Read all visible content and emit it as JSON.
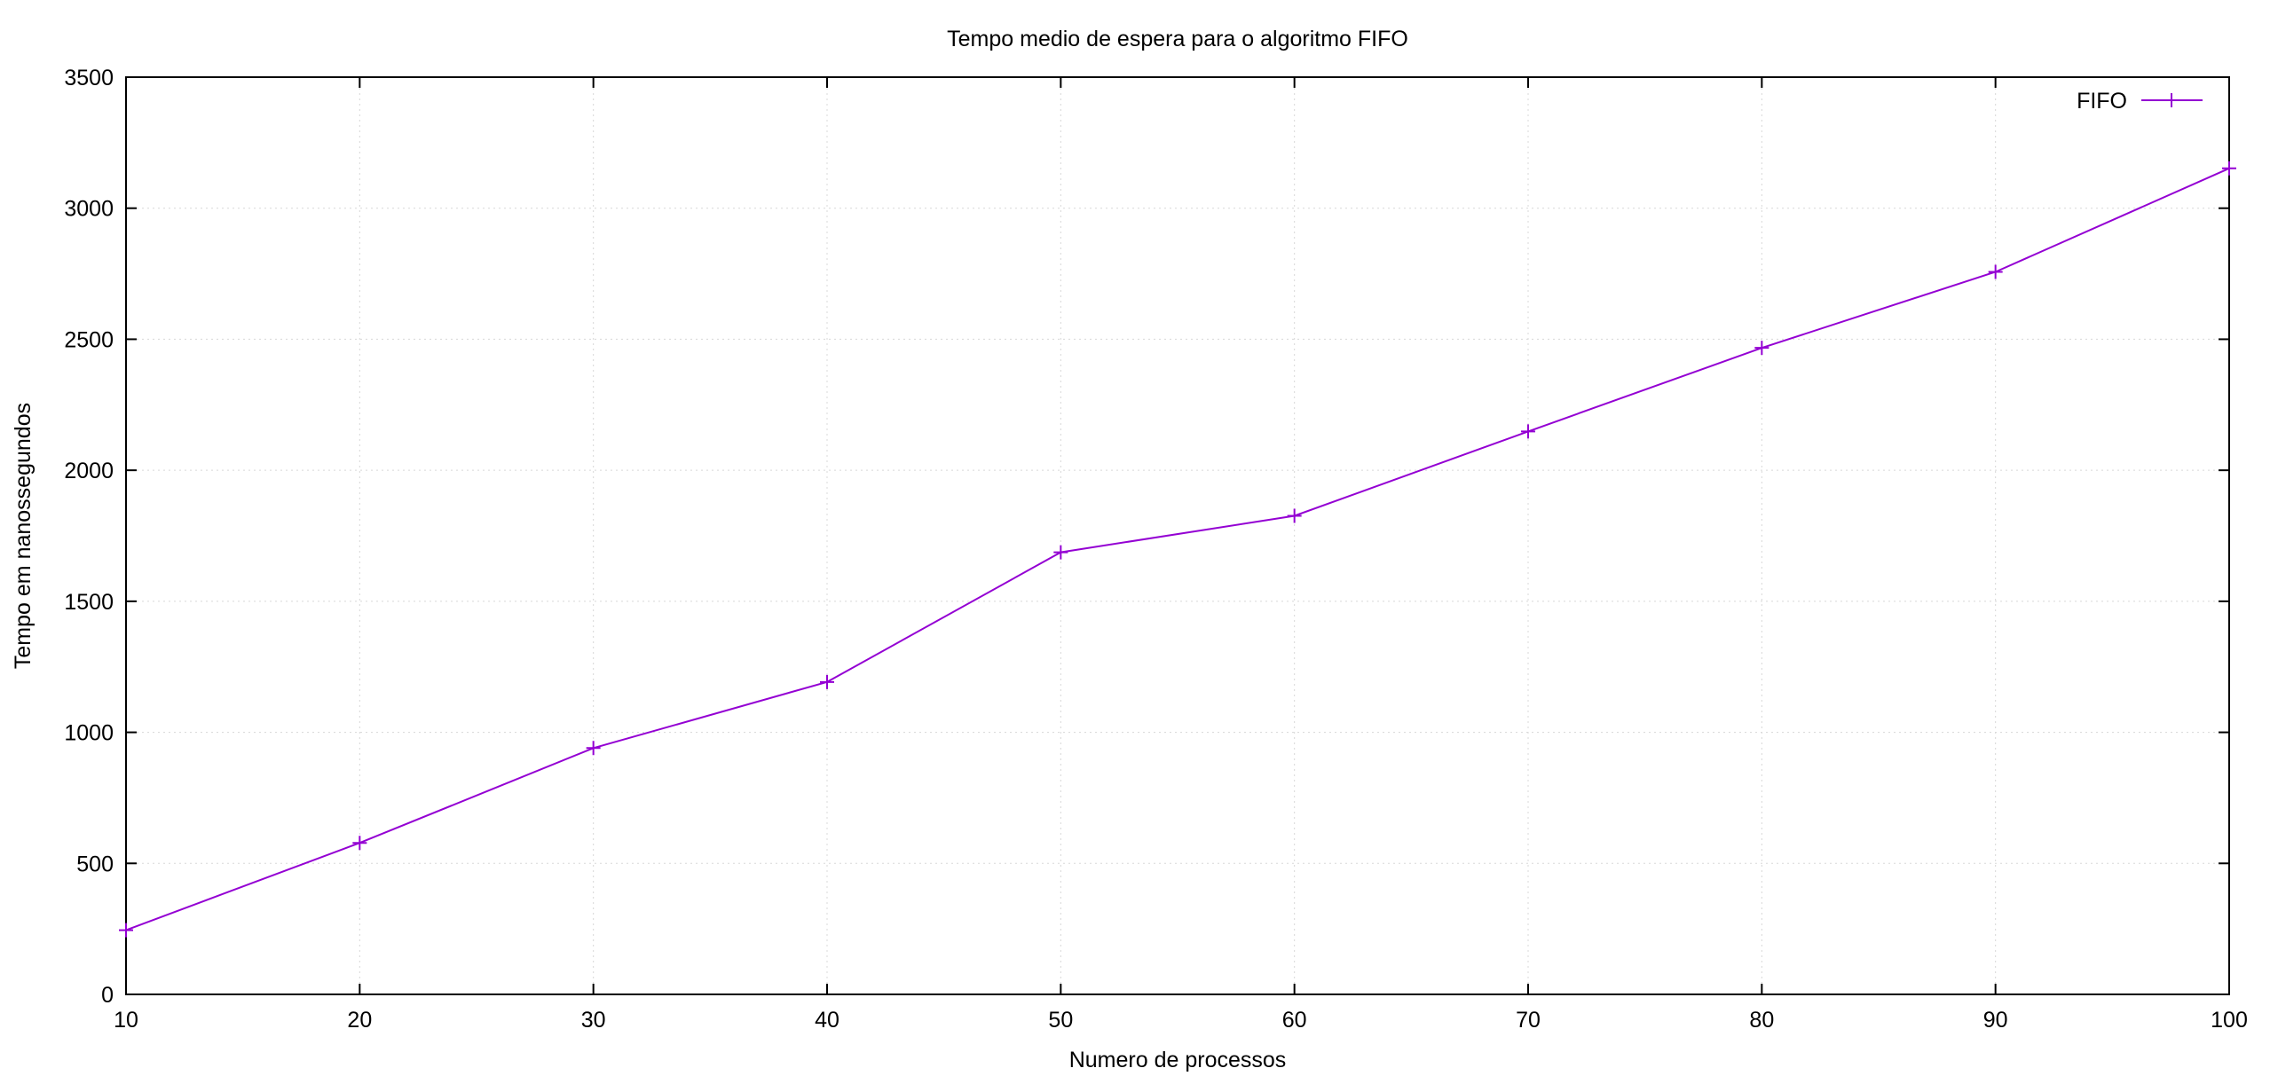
{
  "chart_data": {
    "type": "line",
    "title": "Tempo medio de espera para o algoritmo FIFO",
    "xlabel": "Numero de processos",
    "ylabel": "Tempo em nanossegundos",
    "xlim": [
      10,
      100
    ],
    "ylim": [
      0,
      3500
    ],
    "xticks": [
      10,
      20,
      30,
      40,
      50,
      60,
      70,
      80,
      90,
      100
    ],
    "yticks": [
      0,
      500,
      1000,
      1500,
      2000,
      2500,
      3000,
      3500
    ],
    "grid": true,
    "legend_position": "top-right",
    "series": [
      {
        "name": "FIFO",
        "color": "#9400d3",
        "marker": "plus",
        "x": [
          10,
          20,
          30,
          40,
          50,
          60,
          70,
          80,
          90,
          100
        ],
        "y": [
          245,
          578,
          940,
          1192,
          1687,
          1826,
          2148,
          2467,
          2757,
          3152
        ]
      }
    ]
  }
}
